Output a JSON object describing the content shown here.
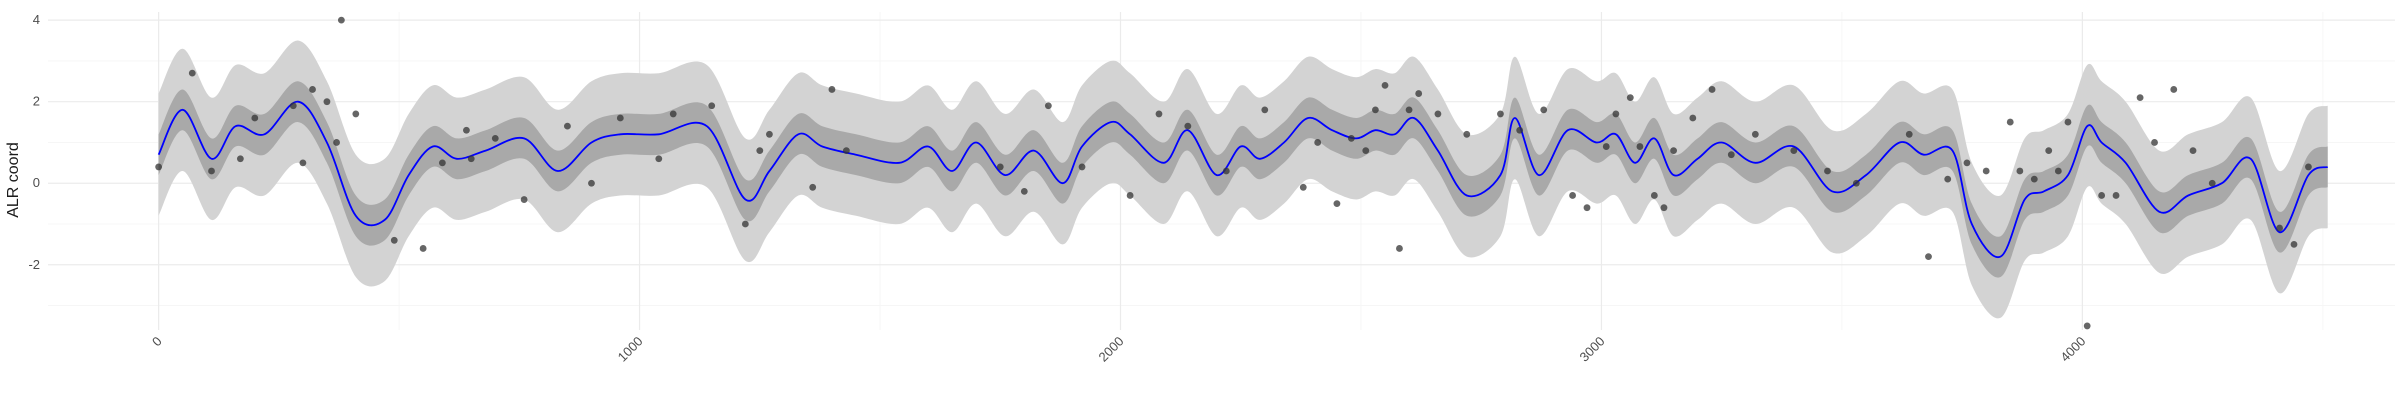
{
  "chart_data": {
    "type": "line",
    "xlabel": "",
    "ylabel": "ALR coord",
    "xlim": [
      -230,
      4650
    ],
    "ylim": [
      -3.6,
      4.2
    ],
    "x_ticks": [
      0,
      1000,
      2000,
      3000,
      4000
    ],
    "x_tick_labels": [
      "0",
      "1000",
      "2000",
      "3000",
      "4000"
    ],
    "y_ticks": [
      -2,
      0,
      2,
      4
    ],
    "y_tick_labels": [
      "-2",
      "0",
      "2",
      "4"
    ],
    "grid": true,
    "colors": {
      "line": "#0000ff",
      "inner_band": "#a9a9a9",
      "outer_band": "#d3d3d3",
      "points": "#333333"
    },
    "series": [
      {
        "role": "fitted_mean",
        "x": [
          0,
          50,
          110,
          160,
          220,
          290,
          350,
          410,
          470,
          520,
          570,
          620,
          680,
          760,
          830,
          900,
          960,
          1040,
          1140,
          1220,
          1270,
          1330,
          1380,
          1450,
          1540,
          1600,
          1650,
          1700,
          1760,
          1820,
          1880,
          1920,
          1980,
          2020,
          2090,
          2140,
          2200,
          2250,
          2290,
          2340,
          2390,
          2440,
          2490,
          2530,
          2570,
          2610,
          2660,
          2720,
          2790,
          2820,
          2870,
          2930,
          2990,
          3030,
          3070,
          3110,
          3150,
          3200,
          3250,
          3320,
          3400,
          3480,
          3550,
          3620,
          3670,
          3730,
          3770,
          3830,
          3880,
          3920,
          3970,
          4010,
          4040,
          4090,
          4160,
          4220,
          4290,
          4350,
          4410,
          4470,
          4510
        ],
        "y": [
          0.7,
          1.8,
          0.6,
          1.4,
          1.2,
          2.0,
          1.0,
          -0.8,
          -0.9,
          0.2,
          0.9,
          0.6,
          0.8,
          1.1,
          0.3,
          1.0,
          1.2,
          1.2,
          1.4,
          -0.4,
          0.3,
          1.2,
          0.9,
          0.7,
          0.5,
          0.9,
          0.3,
          1.0,
          0.2,
          0.8,
          0.0,
          0.9,
          1.5,
          1.2,
          0.5,
          1.3,
          0.2,
          0.9,
          0.6,
          1.0,
          1.6,
          1.3,
          1.1,
          1.3,
          1.2,
          1.6,
          0.8,
          -0.3,
          0.2,
          1.6,
          0.2,
          1.3,
          1.0,
          1.2,
          0.5,
          1.1,
          0.2,
          0.6,
          1.0,
          0.5,
          0.9,
          -0.2,
          0.2,
          1.0,
          0.7,
          0.8,
          -1.0,
          -1.8,
          -0.4,
          -0.2,
          0.2,
          1.4,
          1.0,
          0.5,
          -0.7,
          -0.3,
          0.0,
          0.6,
          -1.2,
          0.2,
          0.4
        ],
        "inner_band_halfwidth": 0.5,
        "outer_band_halfwidth": 1.5
      }
    ],
    "points": {
      "x": [
        0,
        70,
        110,
        170,
        200,
        280,
        300,
        320,
        350,
        370,
        380,
        410,
        490,
        550,
        590,
        640,
        650,
        700,
        760,
        850,
        900,
        960,
        1040,
        1070,
        1150,
        1220,
        1250,
        1270,
        1360,
        1400,
        1430,
        1750,
        1800,
        1850,
        1920,
        2020,
        2080,
        2140,
        2220,
        2300,
        2380,
        2410,
        2450,
        2480,
        2510,
        2530,
        2550,
        2580,
        2600,
        2620,
        2660,
        2720,
        2790,
        2830,
        2880,
        2940,
        2970,
        3010,
        3030,
        3060,
        3080,
        3110,
        3130,
        3150,
        3190,
        3230,
        3270,
        3320,
        3400,
        3470,
        3530,
        3640,
        3680,
        3720,
        3760,
        3800,
        3850,
        3870,
        3900,
        3930,
        3950,
        3970,
        4010,
        4040,
        4070,
        4120,
        4150,
        4190,
        4230,
        4270,
        4410,
        4440,
        4470
      ],
      "y": [
        0.4,
        2.7,
        0.3,
        0.6,
        1.6,
        1.9,
        0.5,
        2.3,
        2.0,
        1.0,
        4.0,
        1.7,
        -1.4,
        -1.6,
        0.5,
        1.3,
        0.6,
        1.1,
        -0.4,
        1.4,
        0.0,
        1.6,
        0.6,
        1.7,
        1.9,
        -1.0,
        0.8,
        1.2,
        -0.1,
        2.3,
        0.8,
        0.4,
        -0.2,
        1.9,
        0.4,
        -0.3,
        1.7,
        1.4,
        0.3,
        1.8,
        -0.1,
        1.0,
        -0.5,
        1.1,
        0.8,
        1.8,
        2.4,
        -1.6,
        1.8,
        2.2,
        1.7,
        1.2,
        1.7,
        1.3,
        1.8,
        -0.3,
        -0.6,
        0.9,
        1.7,
        2.1,
        0.9,
        -0.3,
        -0.6,
        0.8,
        1.6,
        2.3,
        0.7,
        1.2,
        0.8,
        0.3,
        0.0,
        1.2,
        -1.8,
        0.1,
        0.5,
        0.3,
        1.5,
        0.3,
        0.1,
        0.8,
        0.3,
        1.5,
        -3.5,
        -0.3,
        -0.3,
        2.1,
        1.0,
        2.3,
        0.8,
        0.0,
        -1.1,
        -1.5,
        0.4
      ]
    }
  }
}
